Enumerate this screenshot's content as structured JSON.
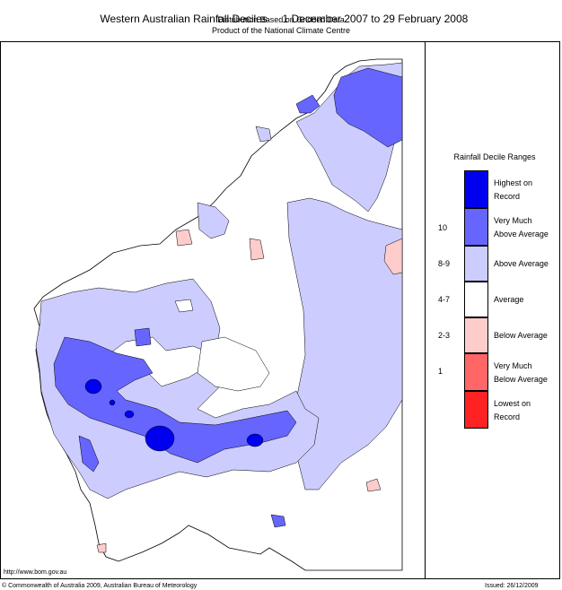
{
  "header": {
    "title_left": "Western Australian Rainfall Deciles",
    "title_right": "1 December 2007 to 29 February 2008",
    "subtitle1": "Distribution Based on Gridded Data",
    "subtitle2": "Product of the National Climate Centre"
  },
  "legend": {
    "title": "Rainfall Decile Ranges",
    "items": [
      {
        "label_line1": "Highest on",
        "label_line2": "Record",
        "range": "",
        "color": "#0000ee"
      },
      {
        "label_line1": "Very Much",
        "label_line2": "Above Average",
        "range": "10",
        "color": "#6666ff"
      },
      {
        "label_line1": "Above Average",
        "label_line2": "",
        "range": "8-9",
        "color": "#ccccff"
      },
      {
        "label_line1": "Average",
        "label_line2": "",
        "range": "4-7",
        "color": "#ffffff"
      },
      {
        "label_line1": "Below Average",
        "label_line2": "",
        "range": "2-3",
        "color": "#ffcccc"
      },
      {
        "label_line1": "Very Much",
        "label_line2": "Below Average",
        "range": "1",
        "color": "#ff6666"
      },
      {
        "label_line1": "Lowest on",
        "label_line2": "Record",
        "range": "",
        "color": "#ff2222"
      }
    ]
  },
  "footer": {
    "url": "http://www.bom.gov.au",
    "copyright": "© Commonwealth of Australia 2009, Australian Bureau of Meteorology",
    "issued": "Issued: 26/12/2009"
  }
}
